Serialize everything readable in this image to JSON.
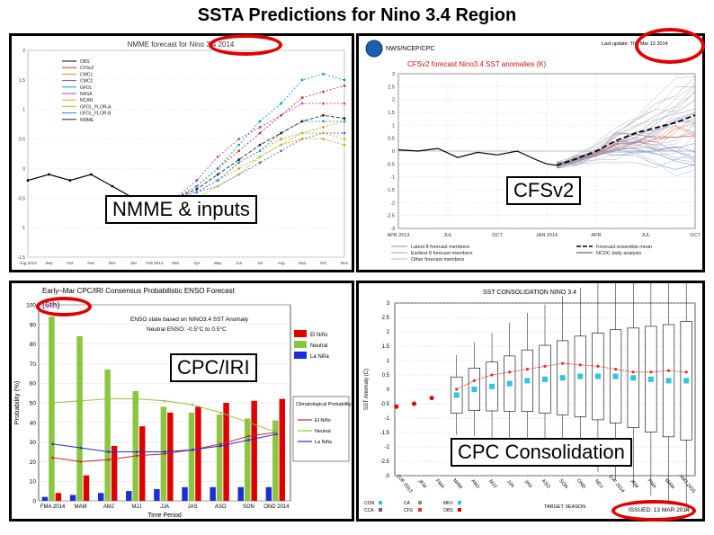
{
  "page": {
    "title": "SSTA Predictions for Nino 3.4 Region"
  },
  "panels": {
    "nmme": {
      "label": "NMME & inputs",
      "header": "NMME forecast for Nino 3.4 2014",
      "legend": [
        "OBS",
        "CFSv2",
        "CMC1",
        "CMC2",
        "GFDL",
        "NASA",
        "NCAR",
        "GFDL_FLOR-A",
        "GFDL_FLOR-B",
        "NMME"
      ]
    },
    "cfs": {
      "label": "CFSv2",
      "agency": "NWS/NCEP/CPC",
      "header": "CFSv2 forecast Nino3.4 SST anomalies (K)",
      "update": "Last update: Thu Mar 13 2014",
      "legend": [
        "Latest 8 forecast members",
        "Earliest 8 forecast members",
        "Other forecast members",
        "Forecast ensemble mean",
        "NCDC daily analysis"
      ]
    },
    "cpc": {
      "label": "CPC/IRI",
      "header": "Early–Mar CPC/IRI Consensus Probabilistic ENSO Forecast",
      "note": "(6th)",
      "state_text": "ENSO state based on NINO3.4 SST Anomaly",
      "neutral_text": "Neutral ENSO: -0.5°C to 0.5°C",
      "ylabel": "Probability (%)",
      "xlabel": "Time Period",
      "legend": [
        "El Niño",
        "Neutral",
        "La Niña"
      ],
      "clim_title": "Climatological Probability:",
      "clim_legend": [
        "El Niño",
        "Neutral",
        "La Niña"
      ]
    },
    "cons": {
      "label": "CPC Consolidation",
      "header": "SST CONSOLIDATION NINO 3.4",
      "ylabel": "SST Anomaly (C)",
      "xlabel": "TARGET SEASON",
      "issued": "ISSUED: 13 MAR 2014",
      "legend": [
        "CON",
        "CA",
        "MKV",
        "CCA",
        "CFS",
        "OBS"
      ]
    }
  },
  "chart_data": [
    {
      "type": "line",
      "title": "NMME forecast for Nino 3.4",
      "x": [
        "Aug 2013",
        "Sep",
        "Oct",
        "Nov",
        "Dec",
        "Jan",
        "Feb 2014",
        "Mar",
        "Apr",
        "May",
        "Jun",
        "Jul",
        "Aug",
        "Sep",
        "Oct",
        "Nov"
      ],
      "ylim": [
        -1.5,
        2
      ],
      "series": [
        {
          "name": "OBS",
          "values": [
            -0.2,
            -0.1,
            -0.2,
            -0.1,
            -0.3,
            -0.5,
            -0.6,
            null,
            null,
            null,
            null,
            null,
            null,
            null,
            null,
            null
          ]
        },
        {
          "name": "CFSv2",
          "values": [
            null,
            null,
            null,
            null,
            null,
            null,
            null,
            -0.5,
            -0.3,
            0.0,
            0.3,
            0.6,
            0.9,
            1.2,
            1.3,
            1.4
          ]
        },
        {
          "name": "CMC1",
          "values": [
            null,
            null,
            null,
            null,
            null,
            null,
            null,
            -0.5,
            -0.4,
            -0.2,
            0.1,
            0.3,
            0.5,
            0.6,
            0.7,
            0.8
          ]
        },
        {
          "name": "CMC2",
          "values": [
            null,
            null,
            null,
            null,
            null,
            null,
            null,
            -0.5,
            -0.4,
            -0.3,
            -0.1,
            0.1,
            0.3,
            0.5,
            0.6,
            0.6
          ]
        },
        {
          "name": "GFDL",
          "values": [
            null,
            null,
            null,
            null,
            null,
            null,
            null,
            -0.5,
            -0.3,
            0.0,
            0.4,
            0.8,
            1.1,
            1.5,
            1.6,
            1.5
          ]
        },
        {
          "name": "NASA",
          "values": [
            null,
            null,
            null,
            null,
            null,
            null,
            null,
            -0.5,
            -0.2,
            0.2,
            0.5,
            0.7,
            0.9,
            1.1,
            1.1,
            1.1
          ]
        },
        {
          "name": "NCAR",
          "values": [
            null,
            null,
            null,
            null,
            null,
            null,
            null,
            -0.5,
            -0.4,
            -0.2,
            0.0,
            0.2,
            0.4,
            0.5,
            0.5,
            0.4
          ]
        },
        {
          "name": "GFDL_FLOR-A",
          "values": [
            null,
            null,
            null,
            null,
            null,
            null,
            null,
            -0.5,
            -0.5,
            -0.3,
            -0.1,
            0.2,
            0.4,
            0.6,
            0.6,
            0.5
          ]
        },
        {
          "name": "GFDL_FLOR-B",
          "values": [
            null,
            null,
            null,
            null,
            null,
            null,
            null,
            -0.5,
            -0.4,
            -0.2,
            0.1,
            0.3,
            0.6,
            0.8,
            0.8,
            0.8
          ]
        },
        {
          "name": "NMME",
          "values": [
            null,
            null,
            null,
            null,
            null,
            null,
            null,
            -0.5,
            -0.35,
            -0.1,
            0.15,
            0.4,
            0.6,
            0.8,
            0.9,
            0.85
          ]
        }
      ]
    },
    {
      "type": "line",
      "title": "CFSv2 forecast Nino3.4 SST anomalies (K)",
      "x": [
        "APR 2013",
        "JUL",
        "OCT",
        "JAN 2014",
        "APR",
        "JUL",
        "OCT"
      ],
      "ylim": [
        -3,
        3
      ],
      "yticks": [
        -3,
        -2.5,
        -2,
        -1.5,
        -1,
        -0.5,
        0,
        0.5,
        1,
        1.5,
        2,
        2.5,
        3
      ],
      "series": [
        {
          "name": "NCDC daily analysis",
          "x": [
            0,
            0.4,
            0.8,
            1.2,
            1.6,
            2.0,
            2.4,
            2.8,
            3.0,
            3.2
          ],
          "values": [
            0.05,
            0.0,
            0.1,
            -0.25,
            -0.05,
            -0.15,
            0.0,
            -0.35,
            -0.5,
            -0.55
          ]
        },
        {
          "name": "Forecast ensemble mean",
          "x": [
            3.2,
            3.6,
            4.0,
            4.4,
            4.8,
            5.2,
            5.6,
            6.0
          ],
          "values": [
            -0.55,
            -0.3,
            0.0,
            0.4,
            0.7,
            0.9,
            1.1,
            1.4
          ]
        }
      ]
    },
    {
      "type": "bar",
      "title": "CPC/IRI Consensus Probabilistic ENSO Forecast",
      "categories": [
        "FMA 2014",
        "MAM",
        "AMJ",
        "MJJ",
        "JJA",
        "JAS",
        "ASO",
        "SON",
        "OND 2014"
      ],
      "ylim": [
        0,
        100
      ],
      "series": [
        {
          "name": "El Niño",
          "values": [
            4,
            13,
            28,
            38,
            45,
            48,
            50,
            51,
            52
          ]
        },
        {
          "name": "Neutral",
          "values": [
            94,
            84,
            67,
            56,
            48,
            45,
            44,
            42,
            41
          ]
        },
        {
          "name": "La Niña",
          "values": [
            2,
            3,
            4,
            5,
            6,
            7,
            7,
            7,
            7
          ]
        },
        {
          "name": "Clim El Niño",
          "values": [
            22,
            20,
            21,
            23,
            24,
            26,
            29,
            33,
            35
          ]
        },
        {
          "name": "Clim Neutral",
          "values": [
            50,
            51,
            52,
            52,
            51,
            49,
            45,
            40,
            35
          ]
        },
        {
          "name": "Clim La Niña",
          "values": [
            29,
            27,
            25,
            25,
            25,
            26,
            28,
            31,
            34
          ]
        }
      ]
    },
    {
      "type": "scatter",
      "title": "SST CONSOLIDATION NINO 3.4",
      "categories": [
        "DJF 2013",
        "JFM",
        "FMA",
        "MAM",
        "AMJ",
        "MJJ",
        "JJA",
        "JAS",
        "ASO",
        "SON",
        "OND",
        "NDJ",
        "DJF 2014",
        "JFM",
        "FMA",
        "MAM",
        "AMJ 2015"
      ],
      "ylim": [
        -3,
        3
      ],
      "yticks": [
        -3,
        -2.5,
        -2,
        -1.5,
        -1,
        -0.5,
        0,
        0.5,
        1,
        1.5,
        2,
        2.5,
        3
      ],
      "series": [
        {
          "name": "OBS",
          "values": [
            -0.6,
            -0.5,
            -0.3,
            null,
            null,
            null,
            null,
            null,
            null,
            null,
            null,
            null,
            null,
            null,
            null,
            null,
            null
          ]
        },
        {
          "name": "CON",
          "values": [
            null,
            null,
            null,
            -0.2,
            0.0,
            0.1,
            0.2,
            0.3,
            0.35,
            0.4,
            0.45,
            0.45,
            0.45,
            0.4,
            0.35,
            0.3,
            0.3
          ]
        },
        {
          "name": "CFS",
          "values": [
            null,
            null,
            null,
            0.0,
            0.3,
            0.5,
            0.6,
            0.7,
            0.8,
            0.9,
            0.85,
            0.8,
            0.7,
            0.6,
            0.6,
            0.65,
            0.6
          ]
        }
      ]
    }
  ]
}
